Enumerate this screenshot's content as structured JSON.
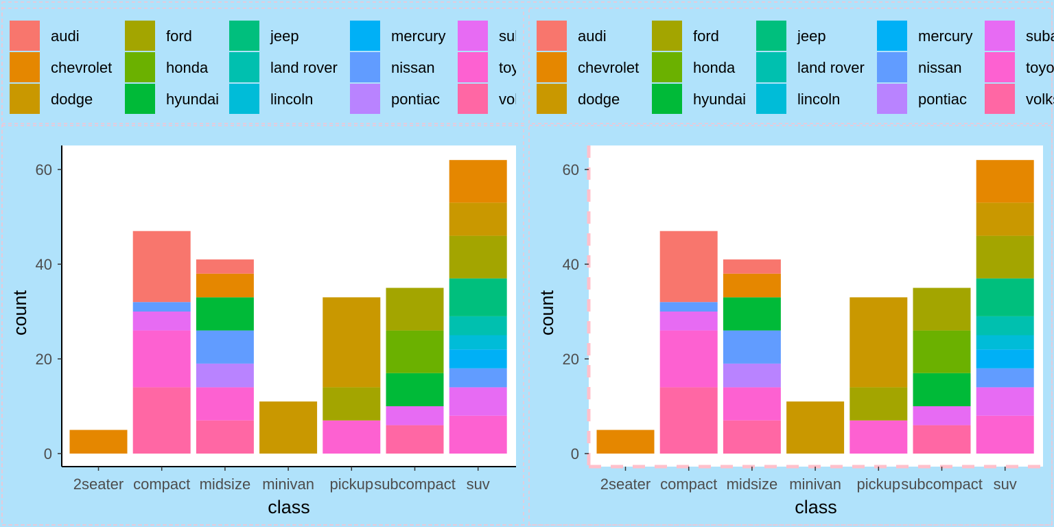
{
  "colors": {
    "background": "#b0e2fb",
    "panel": "#ffffff",
    "dash": "#ffc0cb",
    "axis_text": "#4d4d4d",
    "axis_title": "#000000"
  },
  "legend_entries": [
    {
      "label": "audi",
      "color": "#F8766D"
    },
    {
      "label": "chevrolet",
      "color": "#E58700"
    },
    {
      "label": "dodge",
      "color": "#C99800"
    },
    {
      "label": "ford",
      "color": "#A3A500"
    },
    {
      "label": "honda",
      "color": "#6BB100"
    },
    {
      "label": "hyundai",
      "color": "#00BA38"
    },
    {
      "label": "jeep",
      "color": "#00BF7D"
    },
    {
      "label": "land rover",
      "color": "#00C0AF"
    },
    {
      "label": "lincoln",
      "color": "#00BCD8"
    },
    {
      "label": "mercury",
      "color": "#00B0F6"
    },
    {
      "label": "nissan",
      "color": "#619CFF"
    },
    {
      "label": "pontiac",
      "color": "#B983FF"
    },
    {
      "label": "subaru",
      "color": "#E76BF3"
    },
    {
      "label": "toyota",
      "color": "#FD61D1"
    },
    {
      "label": "volkswagen",
      "color": "#FF67A4"
    }
  ],
  "chart_data": [
    {
      "type": "bar",
      "stacked": true,
      "xlabel": "class",
      "ylabel": "count",
      "ylim": [
        0,
        65
      ],
      "yticks": [
        0,
        20,
        40,
        60
      ],
      "categories": [
        "2seater",
        "compact",
        "midsize",
        "minivan",
        "pickup",
        "subcompact",
        "suv"
      ],
      "legend_position": "top",
      "y_axis_line_style": "solid",
      "series": [
        {
          "name": "audi",
          "values": [
            0,
            15,
            3,
            0,
            0,
            0,
            0
          ]
        },
        {
          "name": "chevrolet",
          "values": [
            5,
            0,
            5,
            0,
            0,
            0,
            9
          ]
        },
        {
          "name": "dodge",
          "values": [
            0,
            0,
            0,
            11,
            19,
            0,
            7
          ]
        },
        {
          "name": "ford",
          "values": [
            0,
            0,
            0,
            0,
            7,
            9,
            9
          ]
        },
        {
          "name": "honda",
          "values": [
            0,
            0,
            0,
            0,
            0,
            9,
            0
          ]
        },
        {
          "name": "hyundai",
          "values": [
            0,
            0,
            7,
            0,
            0,
            7,
            0
          ]
        },
        {
          "name": "jeep",
          "values": [
            0,
            0,
            0,
            0,
            0,
            0,
            8
          ]
        },
        {
          "name": "land rover",
          "values": [
            0,
            0,
            0,
            0,
            0,
            0,
            4
          ]
        },
        {
          "name": "lincoln",
          "values": [
            0,
            0,
            0,
            0,
            0,
            0,
            3
          ]
        },
        {
          "name": "mercury",
          "values": [
            0,
            0,
            0,
            0,
            0,
            0,
            4
          ]
        },
        {
          "name": "nissan",
          "values": [
            0,
            2,
            7,
            0,
            0,
            0,
            4
          ]
        },
        {
          "name": "pontiac",
          "values": [
            0,
            0,
            5,
            0,
            0,
            0,
            0
          ]
        },
        {
          "name": "subaru",
          "values": [
            0,
            4,
            0,
            0,
            0,
            4,
            6
          ]
        },
        {
          "name": "toyota",
          "values": [
            0,
            12,
            7,
            0,
            7,
            0,
            8
          ]
        },
        {
          "name": "volkswagen",
          "values": [
            0,
            14,
            7,
            0,
            0,
            6,
            0
          ]
        }
      ]
    },
    {
      "type": "bar",
      "stacked": true,
      "xlabel": "class",
      "ylabel": "count",
      "ylim": [
        0,
        65
      ],
      "yticks": [
        0,
        20,
        40,
        60
      ],
      "categories": [
        "2seater",
        "compact",
        "midsize",
        "minivan",
        "pickup",
        "subcompact",
        "suv"
      ],
      "legend_position": "top",
      "y_axis_line_style": "dashed",
      "series": [
        {
          "name": "audi",
          "values": [
            0,
            15,
            3,
            0,
            0,
            0,
            0
          ]
        },
        {
          "name": "chevrolet",
          "values": [
            5,
            0,
            5,
            0,
            0,
            0,
            9
          ]
        },
        {
          "name": "dodge",
          "values": [
            0,
            0,
            0,
            11,
            19,
            0,
            7
          ]
        },
        {
          "name": "ford",
          "values": [
            0,
            0,
            0,
            0,
            7,
            9,
            9
          ]
        },
        {
          "name": "honda",
          "values": [
            0,
            0,
            0,
            0,
            0,
            9,
            0
          ]
        },
        {
          "name": "hyundai",
          "values": [
            0,
            0,
            7,
            0,
            0,
            7,
            0
          ]
        },
        {
          "name": "jeep",
          "values": [
            0,
            0,
            0,
            0,
            0,
            0,
            8
          ]
        },
        {
          "name": "land rover",
          "values": [
            0,
            0,
            0,
            0,
            0,
            0,
            4
          ]
        },
        {
          "name": "lincoln",
          "values": [
            0,
            0,
            0,
            0,
            0,
            0,
            3
          ]
        },
        {
          "name": "mercury",
          "values": [
            0,
            0,
            0,
            0,
            0,
            0,
            4
          ]
        },
        {
          "name": "nissan",
          "values": [
            0,
            2,
            7,
            0,
            0,
            0,
            4
          ]
        },
        {
          "name": "pontiac",
          "values": [
            0,
            0,
            5,
            0,
            0,
            0,
            0
          ]
        },
        {
          "name": "subaru",
          "values": [
            0,
            4,
            0,
            0,
            0,
            4,
            6
          ]
        },
        {
          "name": "toyota",
          "values": [
            0,
            12,
            7,
            0,
            7,
            0,
            8
          ]
        },
        {
          "name": "volkswagen",
          "values": [
            0,
            14,
            7,
            0,
            0,
            6,
            0
          ]
        }
      ]
    }
  ]
}
